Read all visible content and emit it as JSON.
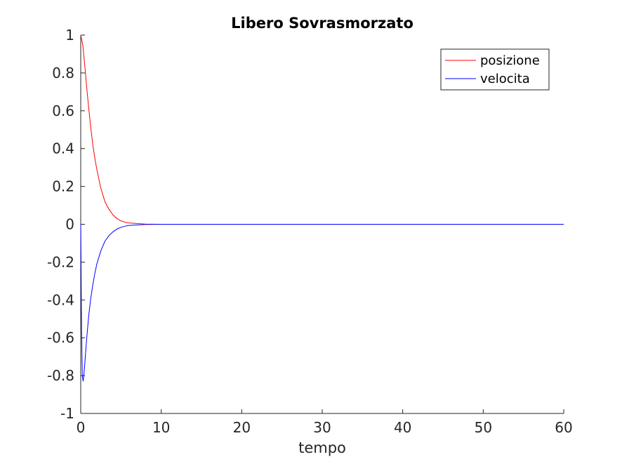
{
  "chart_data": {
    "type": "line",
    "title": "Libero Sovrasmorzato",
    "xlabel": "tempo",
    "ylabel": "",
    "xlim": [
      0,
      60
    ],
    "ylim": [
      -1,
      1
    ],
    "xticks": [
      0,
      10,
      20,
      30,
      40,
      50,
      60
    ],
    "xtick_labels": [
      "0",
      "10",
      "20",
      "30",
      "40",
      "50",
      "60"
    ],
    "yticks": [
      -1,
      -0.8,
      -0.6,
      -0.4,
      -0.2,
      0,
      0.2,
      0.4,
      0.6,
      0.8,
      1
    ],
    "ytick_labels": [
      "-1",
      "-0.8",
      "-0.6",
      "-0.4",
      "-0.2",
      "0",
      "0.2",
      "0.4",
      "0.6",
      "0.8",
      "1"
    ],
    "grid": false,
    "legend_position": "top-right",
    "series": [
      {
        "name": "posizione",
        "color": "#ff0000",
        "x": [
          0,
          0.25,
          0.5,
          0.75,
          1,
          1.25,
          1.5,
          1.75,
          2,
          2.5,
          3,
          3.5,
          4,
          4.5,
          5,
          5.5,
          6,
          8,
          10,
          20,
          30,
          40,
          50,
          60
        ],
        "y": [
          1,
          0.95,
          0.84,
          0.72,
          0.61,
          0.51,
          0.42,
          0.35,
          0.29,
          0.19,
          0.12,
          0.08,
          0.05,
          0.03,
          0.018,
          0.011,
          0.007,
          0.001,
          0,
          0,
          0,
          0,
          0,
          0
        ]
      },
      {
        "name": "velocita",
        "color": "#0000ff",
        "x": [
          0,
          0.1,
          0.2,
          0.3,
          0.4,
          0.5,
          0.6,
          0.75,
          1,
          1.25,
          1.5,
          1.75,
          2,
          2.5,
          3,
          3.5,
          4,
          4.5,
          5,
          5.5,
          6,
          8,
          10,
          20,
          30,
          40,
          50,
          60
        ],
        "y": [
          0,
          -0.55,
          -0.8,
          -0.83,
          -0.79,
          -0.74,
          -0.68,
          -0.6,
          -0.48,
          -0.39,
          -0.32,
          -0.26,
          -0.21,
          -0.14,
          -0.09,
          -0.06,
          -0.04,
          -0.025,
          -0.016,
          -0.01,
          -0.006,
          -0.001,
          0,
          0,
          0,
          0,
          0,
          0
        ]
      }
    ]
  }
}
